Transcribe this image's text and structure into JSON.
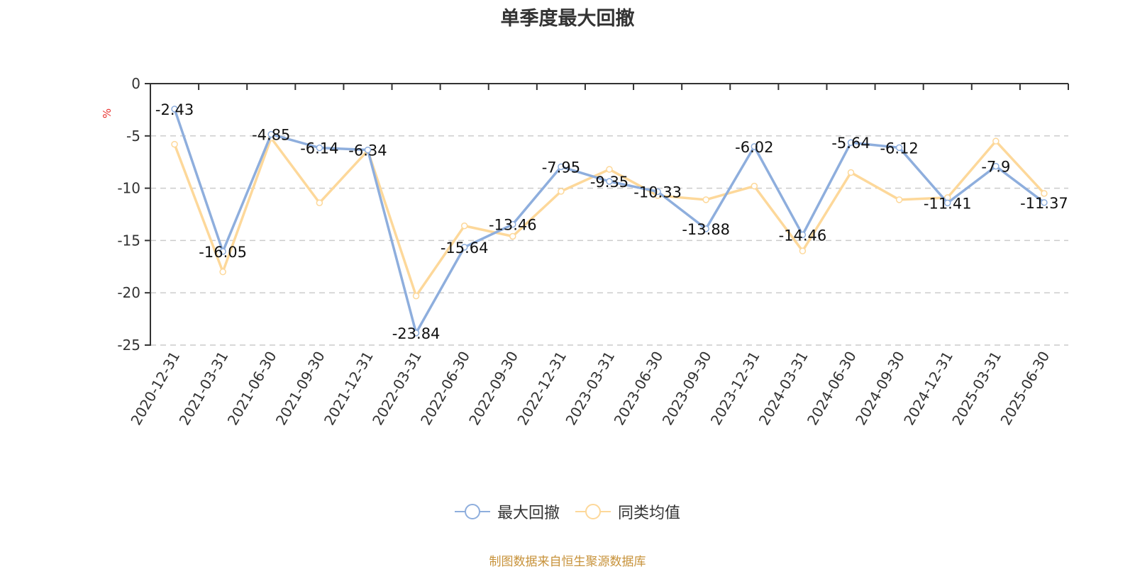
{
  "title": "单季度最大回撤",
  "source_note": "制图数据来自恒生聚源数据库",
  "legend": [
    {
      "label": "最大回撤",
      "color": "#8eaedd"
    },
    {
      "label": "同类均值",
      "color": "#fdd89a"
    }
  ],
  "chart_data": {
    "type": "line",
    "title": "单季度最大回撤",
    "xlabel": "",
    "ylabel": "%",
    "ylim": [
      -25,
      0
    ],
    "yticks": [
      0,
      -5,
      -10,
      -15,
      -20,
      -25
    ],
    "grid": true,
    "legend_position": "bottom",
    "categories": [
      "2020-12-31",
      "2021-03-31",
      "2021-06-30",
      "2021-09-30",
      "2021-12-31",
      "2022-03-31",
      "2022-06-30",
      "2022-09-30",
      "2022-12-31",
      "2023-03-31",
      "2023-06-30",
      "2023-09-30",
      "2023-12-31",
      "2024-03-31",
      "2024-06-30",
      "2024-09-30",
      "2024-12-31",
      "2025-03-31",
      "2025-06-30"
    ],
    "series": [
      {
        "name": "最大回撤",
        "color": "#8eaedd",
        "show_labels": true,
        "values": [
          -2.43,
          -16.05,
          -4.85,
          -6.14,
          -6.34,
          -23.84,
          -15.64,
          -13.46,
          -7.95,
          -9.35,
          -10.33,
          -13.88,
          -6.02,
          -14.46,
          -5.64,
          -6.12,
          -11.41,
          -7.9,
          -11.37
        ]
      },
      {
        "name": "同类均值",
        "color": "#fdd89a",
        "show_labels": false,
        "values": [
          -5.8,
          -18.0,
          -5.2,
          -11.4,
          -6.4,
          -20.3,
          -13.6,
          -14.6,
          -10.3,
          -8.2,
          -10.7,
          -11.1,
          -9.8,
          -16.0,
          -8.5,
          -11.1,
          -10.9,
          -5.5,
          -10.5
        ]
      }
    ]
  }
}
